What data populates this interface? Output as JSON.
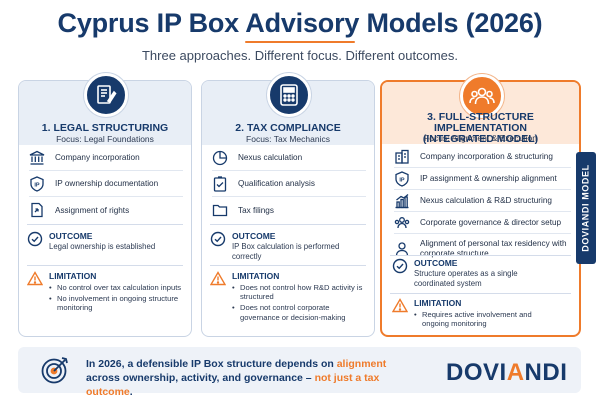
{
  "header": {
    "title": "Cyprus IP Box Advisory Models (2026)",
    "subtitle": "Three approaches. Different focus. Different outcomes."
  },
  "colors": {
    "navy": "#173a6b",
    "accent": "#ef7b2b",
    "panel": "#e8eef6"
  },
  "cards": [
    {
      "title": "1. LEGAL STRUCTURING",
      "focus": "Focus: Legal Foundations",
      "icon": "document-pen-icon",
      "items": [
        {
          "icon": "institution-icon",
          "label": "Company incorporation"
        },
        {
          "icon": "ip-shield-icon",
          "label": "IP ownership documentation"
        },
        {
          "icon": "transfer-document-icon",
          "label": "Assignment of rights"
        }
      ],
      "outcome_heading": "OUTCOME",
      "outcome_text": "Legal ownership is established",
      "limitation_heading": "LIMITATION",
      "limitations": [
        "No control over tax calculation inputs",
        "No involvement in ongoing structure monitoring"
      ]
    },
    {
      "title": "2. TAX COMPLIANCE",
      "focus": "Focus: Tax Mechanics",
      "icon": "calculator-icon",
      "items": [
        {
          "icon": "pie-chart-icon",
          "label": "Nexus calculation"
        },
        {
          "icon": "checklist-icon",
          "label": "Qualification analysis"
        },
        {
          "icon": "folder-icon",
          "label": "Tax filings"
        }
      ],
      "outcome_heading": "OUTCOME",
      "outcome_text": "IP Box calculation is performed correctly",
      "limitation_heading": "LIMITATION",
      "limitations": [
        "Does not control how R&D activity is structured",
        "Does not control corporate governance or decision-making"
      ]
    },
    {
      "title": "3. FULL-STRUCTURE IMPLEMENTATION (INTEGRATED MODEL)",
      "focus": "Focus: Alignment & Execution",
      "icon": "team-icon",
      "items": [
        {
          "icon": "buildings-icon",
          "label": "Company incorporation & structuring"
        },
        {
          "icon": "ip-shield-icon",
          "label": "IP assignment & ownership alignment"
        },
        {
          "icon": "bar-chart-icon",
          "label": "Nexus calculation & R&D structuring"
        },
        {
          "icon": "people-icon",
          "label": "Corporate governance & director setup"
        },
        {
          "icon": "person-icon",
          "label": "Alignment of personal tax residency with corporate structure"
        }
      ],
      "outcome_heading": "OUTCOME",
      "outcome_text": "Structure operates as a single coordinated system",
      "limitation_heading": "LIMITATION",
      "limitations": [
        "Requires active involvement and ongoing monitoring"
      ]
    }
  ],
  "side_tab": "DOVIANDI MODEL",
  "footer": {
    "icon": "target-icon",
    "text_1": "In 2026, a defensible IP Box structure depends on ",
    "text_hl_1": "alignment",
    "text_2": " across ownership, activity, and governance – ",
    "text_hl_2": "not just a tax outcome",
    "text_3": "."
  },
  "brand": {
    "part_1": "DOVI",
    "part_2": "A",
    "part_3": "NDI"
  }
}
